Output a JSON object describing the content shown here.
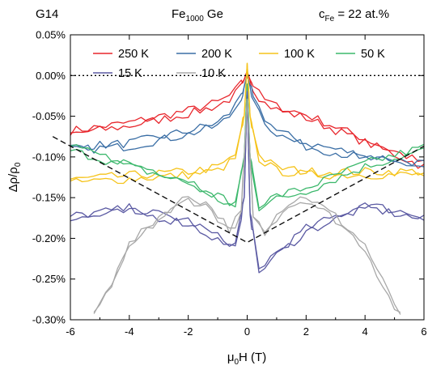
{
  "header": {
    "sample": "G14",
    "material_base": "Fe",
    "material_sub": "1000",
    "material_rest": " Ge",
    "conc_base": "c",
    "conc_sub": "Fe",
    "conc_rest": " = 22 at.%"
  },
  "chart_data": {
    "type": "line",
    "xlabel_main": "μ",
    "xlabel_sub": "0",
    "xlabel_rest": "H (T)",
    "ylabel_main": "Δρ/ρ",
    "ylabel_sub": "0",
    "xlim": [
      -6,
      6
    ],
    "ylim": [
      -0.3,
      0.05
    ],
    "x_ticks": [
      -6,
      -4,
      -2,
      0,
      2,
      4,
      6
    ],
    "x_tick_labels": [
      "-6",
      "-4",
      "-2",
      "0",
      "2",
      "4",
      "6"
    ],
    "y_ticks": [
      0.05,
      0.0,
      -0.05,
      -0.1,
      -0.15,
      -0.2,
      -0.25,
      -0.3
    ],
    "y_tick_labels": [
      "0.05%",
      "0.00%",
      "-0.05%",
      "-0.10%",
      "-0.15%",
      "-0.20%",
      "-0.25%",
      "-0.30%"
    ],
    "legend_position": "top",
    "reference_lines": [
      {
        "style": "dotted",
        "points": [
          [
            -6,
            0.0
          ],
          [
            6,
            0.0
          ]
        ],
        "color": "#000000"
      },
      {
        "style": "dashed",
        "points": [
          [
            -6.6,
            -0.075
          ],
          [
            0,
            -0.205
          ],
          [
            6.6,
            -0.075
          ]
        ],
        "color": "#000000"
      }
    ],
    "series": [
      {
        "name": "250 K",
        "color": "#e8262c",
        "key": [
          [
            -6,
            -0.07
          ],
          [
            -4,
            -0.06
          ],
          [
            -2,
            -0.045
          ],
          [
            -1,
            -0.035
          ],
          [
            -0.5,
            -0.025
          ],
          [
            -0.15,
            -0.01
          ],
          [
            0,
            0.005
          ],
          [
            0.15,
            -0.01
          ],
          [
            0.5,
            -0.03
          ],
          [
            1,
            -0.04
          ],
          [
            2,
            -0.05
          ],
          [
            4,
            -0.08
          ],
          [
            6,
            -0.11
          ]
        ]
      },
      {
        "name": "200 K",
        "color": "#3a6ea5",
        "key": [
          [
            -6,
            -0.09
          ],
          [
            -4,
            -0.085
          ],
          [
            -2,
            -0.07
          ],
          [
            -1,
            -0.06
          ],
          [
            -0.5,
            -0.045
          ],
          [
            -0.15,
            -0.02
          ],
          [
            0,
            0.0
          ],
          [
            0.15,
            -0.02
          ],
          [
            0.5,
            -0.05
          ],
          [
            1,
            -0.07
          ],
          [
            2,
            -0.085
          ],
          [
            4,
            -0.1
          ],
          [
            6,
            -0.11
          ]
        ]
      },
      {
        "name": "100 K",
        "color": "#f5c31a",
        "key": [
          [
            -6,
            -0.13
          ],
          [
            -4,
            -0.125
          ],
          [
            -2,
            -0.12
          ],
          [
            -1,
            -0.115
          ],
          [
            -0.4,
            -0.1
          ],
          [
            -0.1,
            -0.05
          ],
          [
            0,
            0.015
          ],
          [
            0.1,
            -0.05
          ],
          [
            0.4,
            -0.1
          ],
          [
            1,
            -0.115
          ],
          [
            2,
            -0.12
          ],
          [
            4,
            -0.12
          ],
          [
            6,
            -0.12
          ]
        ]
      },
      {
        "name": "50 K",
        "color": "#3cb86c",
        "key": [
          [
            -6,
            -0.09
          ],
          [
            -4,
            -0.11
          ],
          [
            -2,
            -0.13
          ],
          [
            -1,
            -0.15
          ],
          [
            -0.4,
            -0.16
          ],
          [
            -0.1,
            -0.1
          ],
          [
            0,
            -0.01
          ],
          [
            0.1,
            -0.1
          ],
          [
            0.4,
            -0.16
          ],
          [
            1,
            -0.15
          ],
          [
            2,
            -0.14
          ],
          [
            4,
            -0.11
          ],
          [
            6,
            -0.09
          ]
        ]
      },
      {
        "name": "15 K",
        "color": "#5b5aa3",
        "key": [
          [
            -6,
            -0.175
          ],
          [
            -4,
            -0.165
          ],
          [
            -2,
            -0.18
          ],
          [
            -1,
            -0.2
          ],
          [
            -0.4,
            -0.21
          ],
          [
            -0.1,
            -0.15
          ],
          [
            0,
            -0.02
          ],
          [
            0.1,
            -0.17
          ],
          [
            0.4,
            -0.24
          ],
          [
            0.8,
            -0.225
          ],
          [
            2,
            -0.19
          ],
          [
            4,
            -0.16
          ],
          [
            6,
            -0.175
          ]
        ]
      },
      {
        "name": "10 K",
        "color": "#a8a8a8",
        "key": [
          [
            -5.3,
            -0.3
          ],
          [
            -4.8,
            -0.27
          ],
          [
            -4,
            -0.21
          ],
          [
            -3,
            -0.175
          ],
          [
            -2,
            -0.15
          ],
          [
            -1.3,
            -0.16
          ],
          [
            -0.6,
            -0.19
          ],
          [
            -0.2,
            -0.17
          ],
          [
            0,
            -0.03
          ],
          [
            0.2,
            -0.17
          ],
          [
            0.6,
            -0.19
          ],
          [
            1.3,
            -0.16
          ],
          [
            2,
            -0.15
          ],
          [
            3,
            -0.175
          ],
          [
            4,
            -0.21
          ],
          [
            4.8,
            -0.27
          ],
          [
            5.3,
            -0.3
          ]
        ]
      }
    ]
  }
}
